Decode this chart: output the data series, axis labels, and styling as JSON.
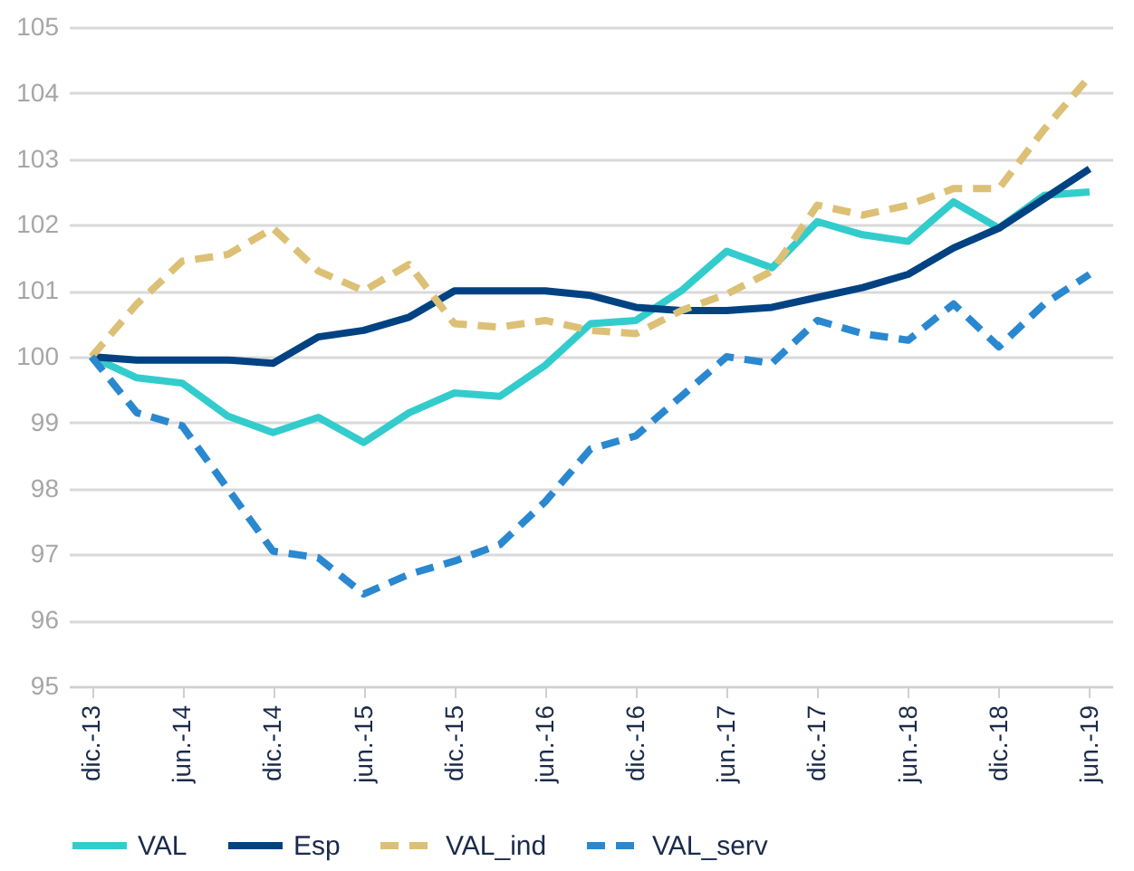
{
  "chart_data": {
    "type": "line",
    "categories": [
      "dic.-13",
      null,
      "jun.-14",
      null,
      "dic.-14",
      null,
      "jun.-15",
      null,
      "dic.-15",
      null,
      "jun.-16",
      null,
      "dic.-16",
      null,
      "jun.-17",
      null,
      "dic.-17",
      null,
      "jun.-18",
      null,
      "dic.-18",
      null,
      "jun.-19"
    ],
    "series": [
      {
        "name": "VAL",
        "color": "#33cccc",
        "line_style": "solid",
        "values": [
          100,
          99.68,
          99.6,
          99.1,
          98.85,
          99.08,
          98.7,
          99.15,
          99.45,
          99.4,
          99.87,
          100.5,
          100.55,
          101.0,
          101.6,
          101.35,
          102.05,
          101.85,
          101.75,
          102.35,
          101.95,
          102.45,
          102.5
        ]
      },
      {
        "name": "Esp",
        "color": "#004282",
        "line_style": "solid",
        "values": [
          100,
          99.95,
          99.95,
          99.95,
          99.9,
          100.3,
          100.4,
          100.6,
          101.0,
          101.0,
          101.0,
          100.93,
          100.75,
          100.7,
          100.7,
          100.75,
          100.9,
          101.05,
          101.25,
          101.65,
          101.95,
          102.4,
          102.85
        ]
      },
      {
        "name": "VAL_ind",
        "color": "#dcc075",
        "line_style": "dashed",
        "values": [
          100,
          100.8,
          101.45,
          101.55,
          101.95,
          101.3,
          101.0,
          101.4,
          100.5,
          100.45,
          100.55,
          100.4,
          100.35,
          100.7,
          100.95,
          101.3,
          102.3,
          102.15,
          102.3,
          102.55,
          102.55,
          103.45,
          104.25
        ]
      },
      {
        "name": "VAL_serv",
        "color": "#2a88d0",
        "line_style": "dashed",
        "values": [
          100,
          99.15,
          98.95,
          98.0,
          97.05,
          96.95,
          96.4,
          96.7,
          96.9,
          97.15,
          97.8,
          98.6,
          98.8,
          99.4,
          100.0,
          99.9,
          100.55,
          100.35,
          100.25,
          100.8,
          100.15,
          100.8,
          101.25
        ]
      }
    ],
    "ylim": [
      95,
      105
    ],
    "yticks": [
      95,
      96,
      97,
      98,
      99,
      100,
      101,
      102,
      103,
      104,
      105
    ],
    "grid": "y",
    "legend": "bottom"
  }
}
